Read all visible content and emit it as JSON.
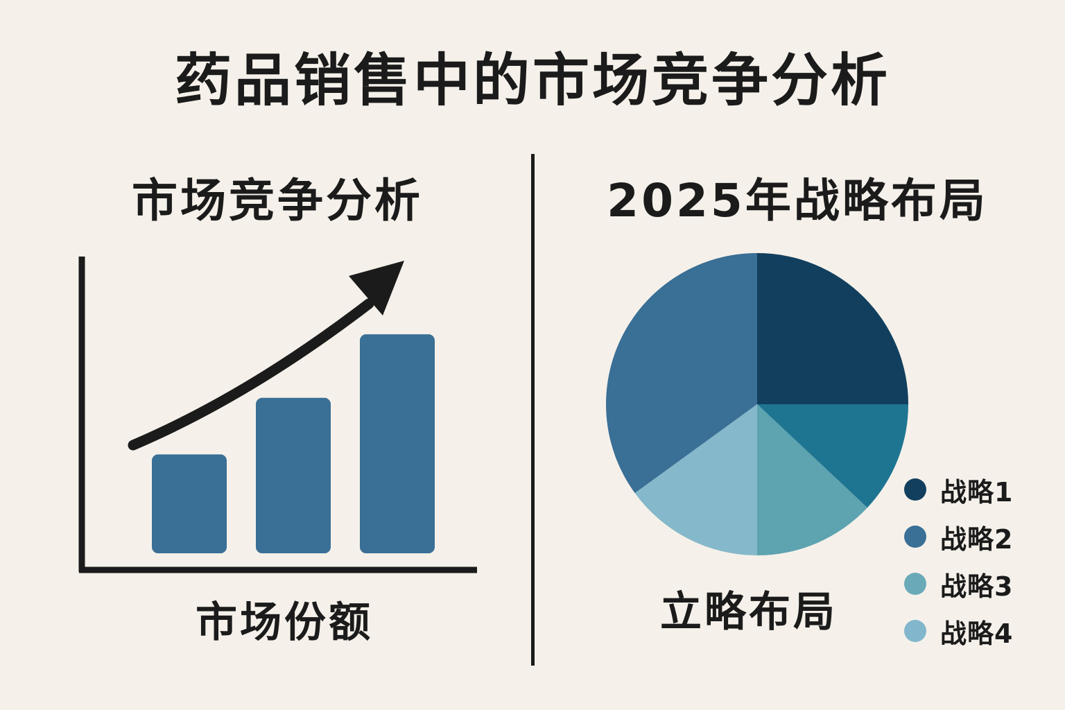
{
  "title": "药品销售中的市场竞争分析",
  "chart_data": [
    {
      "type": "bar",
      "title": "市场竞争分析",
      "xlabel": "市场份额",
      "ylabel": "",
      "categories": [
        "",
        "",
        ""
      ],
      "values": [
        1.4,
        2.2,
        3.1
      ],
      "ylim": [
        0,
        4.2
      ],
      "trend_arrow": "upward",
      "color": "#3a6f96"
    },
    {
      "type": "pie",
      "title": "2025年战略布局",
      "caption": "立略布局",
      "legend_position": "right",
      "series": [
        {
          "name": "战略1",
          "value": 25,
          "color": "#123f5e"
        },
        {
          "name": "战略2",
          "value": 12,
          "color": "#1e7592"
        },
        {
          "name": "战略3",
          "value": 13,
          "color": "#5ea3b0"
        },
        {
          "name": "战略4",
          "value": 15,
          "color": "#85b8ca"
        },
        {
          "name": "战略2",
          "value": 35,
          "color": "#3a6f96"
        }
      ],
      "legend": [
        {
          "label": "战略1",
          "color": "#123f5e"
        },
        {
          "label": "战略2",
          "color": "#3a6f96"
        },
        {
          "label": "战略3",
          "color": "#6aaab8"
        },
        {
          "label": "战略4",
          "color": "#82b6cc"
        }
      ]
    }
  ]
}
